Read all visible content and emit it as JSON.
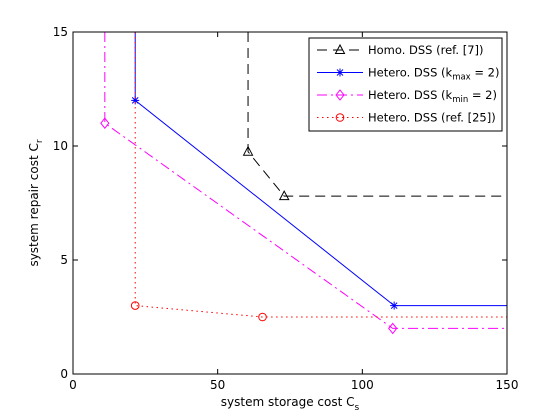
{
  "chart_data": {
    "type": "line",
    "xlabel": "system storage cost C",
    "xlabel_sub": "s",
    "ylabel": "system repair cost C",
    "ylabel_sub": "r",
    "xlim": [
      0,
      150
    ],
    "ylim": [
      0,
      15
    ],
    "xticks": [
      0,
      50,
      100,
      150
    ],
    "yticks": [
      0,
      5,
      10,
      15
    ],
    "grid": false,
    "legend_position": "top-right",
    "series": [
      {
        "name": "Homo. DSS (ref. [7])",
        "name_parts": [
          {
            "t": "Homo. DSS (ref. [7])"
          }
        ],
        "color": "#000000",
        "dash": "10,6",
        "marker": "triangle",
        "x": [
          60.5,
          60.5,
          73,
          150
        ],
        "y": [
          15,
          9.75,
          7.8,
          7.8
        ],
        "marker_x": [
          60.5,
          73
        ],
        "marker_y": [
          9.75,
          7.8
        ]
      },
      {
        "name": "Hetero. DSS (k_max = 2)",
        "name_parts": [
          {
            "t": "Hetero. DSS (k"
          },
          {
            "t": "max",
            "sub": true
          },
          {
            "t": " = 2)"
          }
        ],
        "color": "#0000ff",
        "dash": "",
        "marker": "asterisk",
        "x": [
          21.5,
          21.5,
          111,
          150
        ],
        "y": [
          15,
          12,
          3,
          3
        ],
        "marker_x": [
          21.5,
          111
        ],
        "marker_y": [
          12,
          3
        ]
      },
      {
        "name": "Hetero. DSS (k_min = 2)",
        "name_parts": [
          {
            "t": "Hetero. DSS (k"
          },
          {
            "t": "min",
            "sub": true
          },
          {
            "t": " = 2)"
          }
        ],
        "color": "#ff00ff",
        "dash": "10,4,2,4",
        "marker": "diamond",
        "x": [
          11,
          11,
          110.5,
          150
        ],
        "y": [
          15,
          11,
          2,
          2
        ],
        "marker_x": [
          11,
          110.5
        ],
        "marker_y": [
          11,
          2
        ]
      },
      {
        "name": "Hetero. DSS (ref. [25])",
        "name_parts": [
          {
            "t": "Hetero. DSS (ref. [25])"
          }
        ],
        "color": "#ff0000",
        "dash": "1.5,3.5",
        "marker": "circle",
        "x": [
          21.5,
          21.5,
          65.5,
          150
        ],
        "y": [
          15,
          3,
          2.5,
          2.5
        ],
        "marker_x": [
          21.5,
          65.5
        ],
        "marker_y": [
          3,
          2.5
        ]
      }
    ]
  }
}
